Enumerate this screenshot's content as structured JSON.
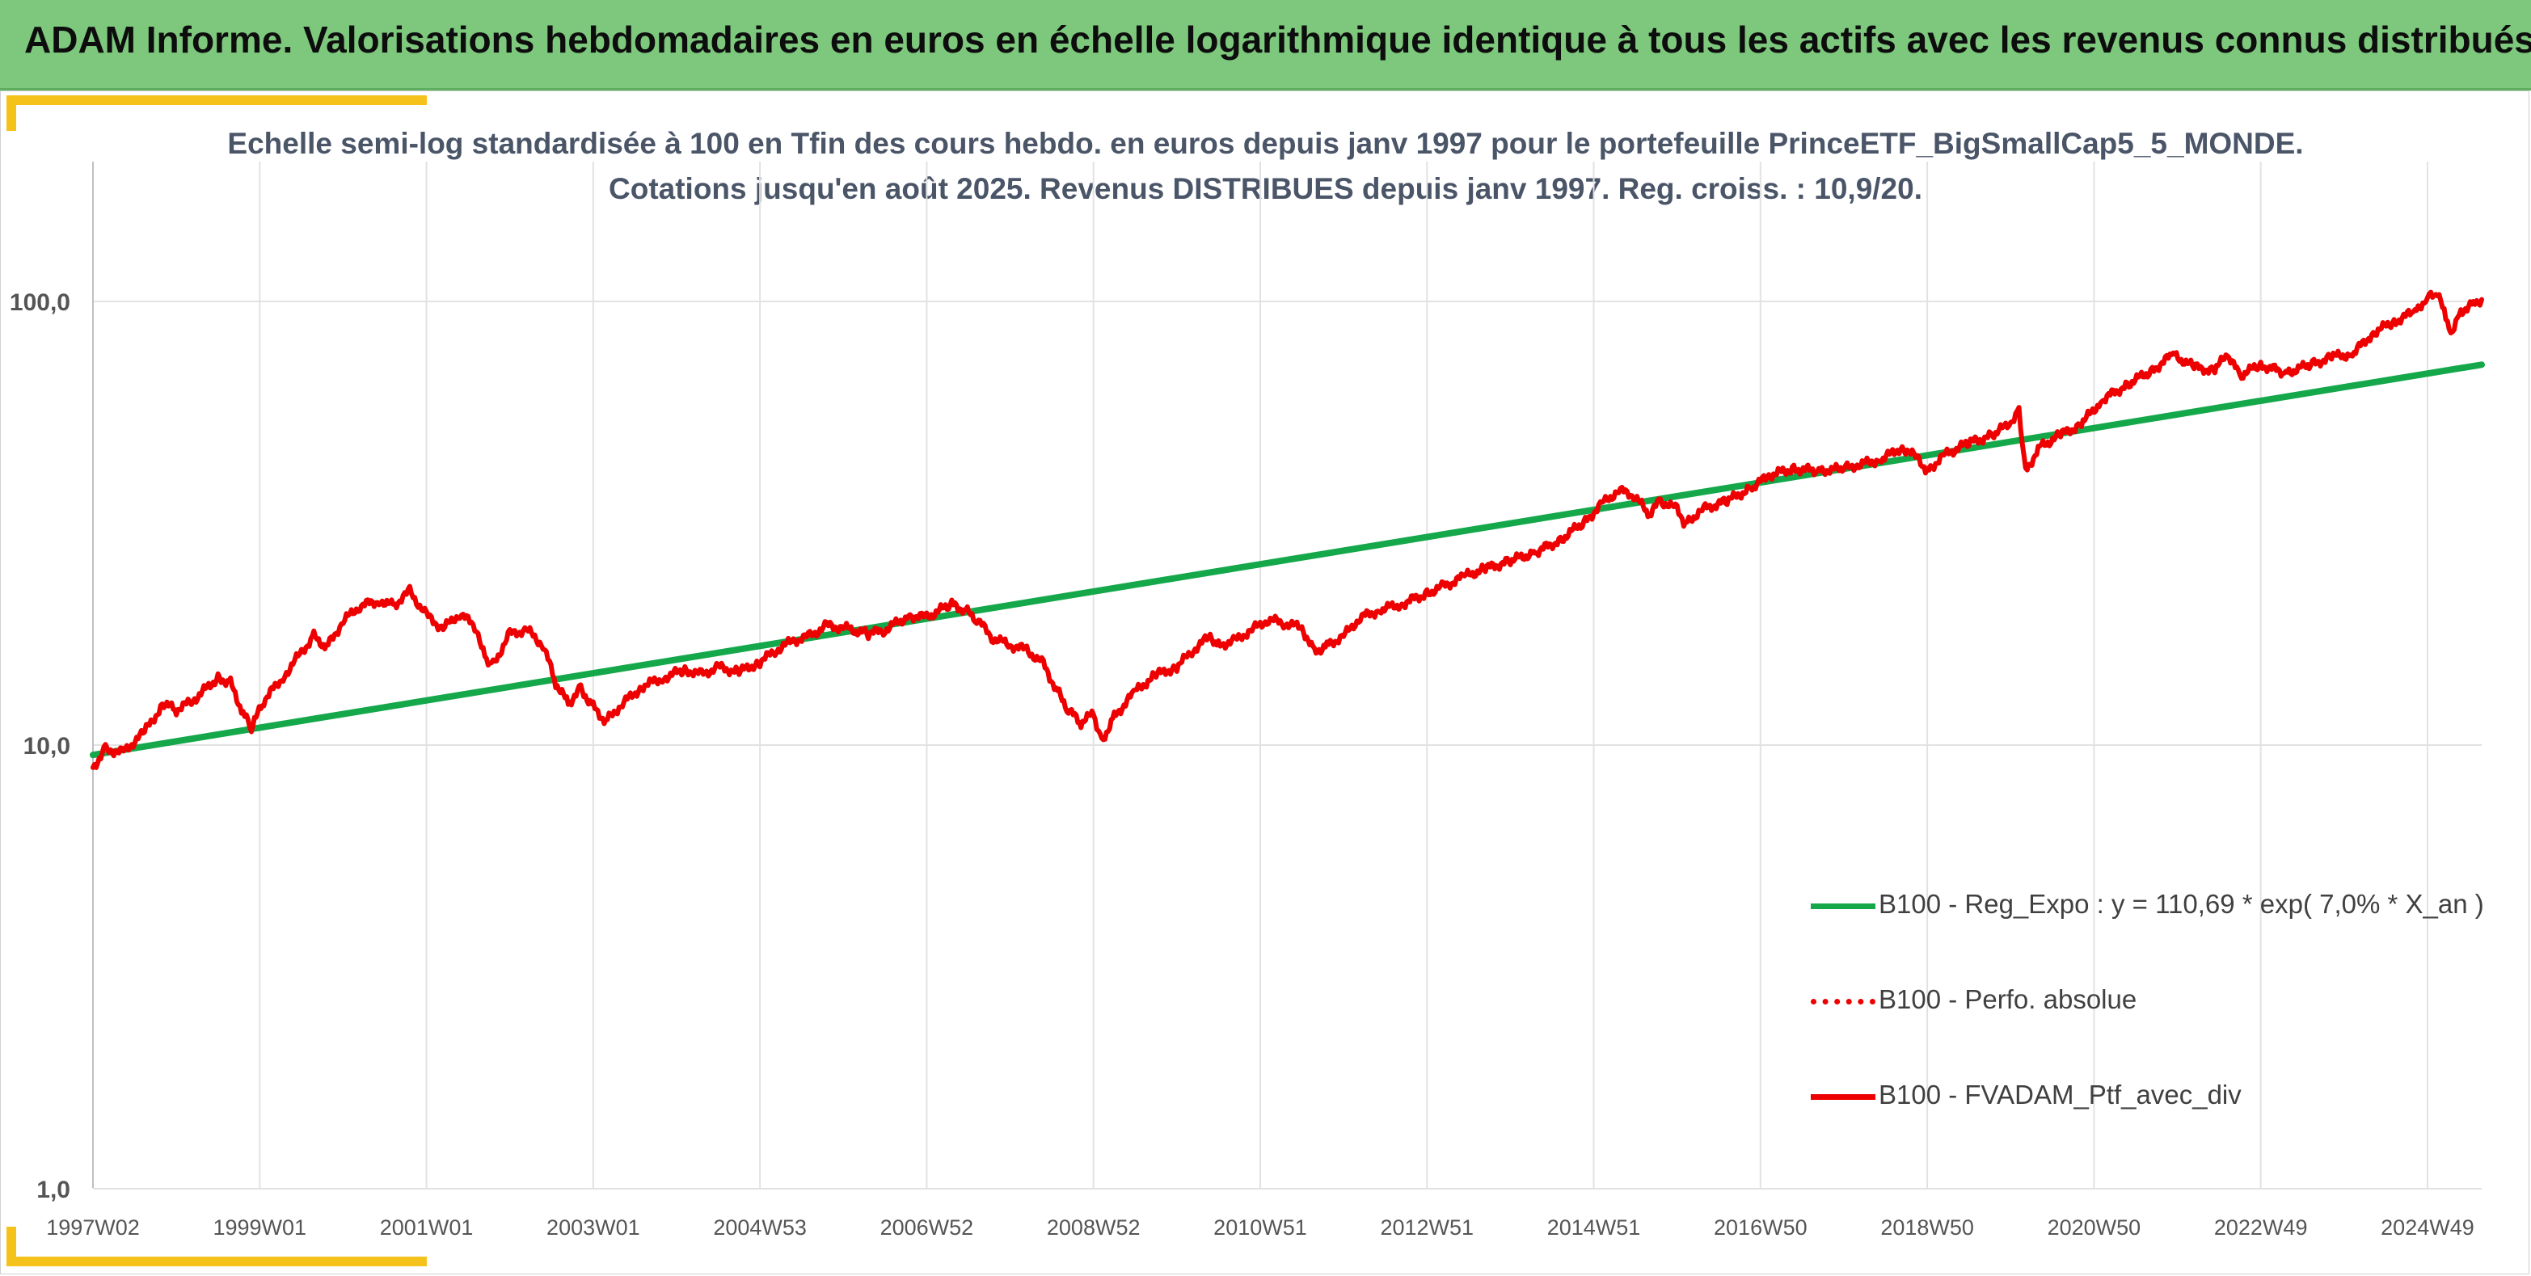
{
  "banner": {
    "title": "ADAM Informe. Valorisations hebdomadaires en euros en échelle logarithmique identique à tous les actifs avec les revenus connus distribués"
  },
  "colors": {
    "banner_bg": "#7dc87d",
    "accent": "#f5c21b",
    "regression": "#14a84b",
    "portfolio": "#ee0000",
    "grid": "#e2e2e2",
    "title_text": "#4a5568"
  },
  "chart_data": {
    "type": "line",
    "title_line1": "Echelle semi-log standardisée à 100 en Tfin des cours hebdo. en euros depuis janv 1997 pour le portefeuille PrinceETF_BigSmallCap5_5_MONDE.",
    "title_line2": "Cotations jusqu'en août 2025. Revenus DISTRIBUES depuis janv 1997. Reg. croiss. : 10,9/20.",
    "y_scale": "log",
    "ylim": [
      1,
      200
    ],
    "y_ticks": [
      {
        "value": 1,
        "label": "1,0"
      },
      {
        "value": 10,
        "label": "10,0"
      },
      {
        "value": 100,
        "label": "100,0"
      }
    ],
    "x_range": [
      1997.0,
      2025.65
    ],
    "x_ticks": [
      {
        "label": "1997W02",
        "year": 1997.0
      },
      {
        "label": "1999W01",
        "year": 1999.0
      },
      {
        "label": "2001W01",
        "year": 2001.0
      },
      {
        "label": "2003W01",
        "year": 2003.0
      },
      {
        "label": "2004W53",
        "year": 2005.0
      },
      {
        "label": "2006W52",
        "year": 2007.0
      },
      {
        "label": "2008W52",
        "year": 2009.0
      },
      {
        "label": "2010W51",
        "year": 2011.0
      },
      {
        "label": "2012W51",
        "year": 2013.0
      },
      {
        "label": "2014W51",
        "year": 2015.0
      },
      {
        "label": "2016W50",
        "year": 2017.0
      },
      {
        "label": "2018W50",
        "year": 2019.0
      },
      {
        "label": "2020W50",
        "year": 2021.0
      },
      {
        "label": "2022W49",
        "year": 2023.0
      },
      {
        "label": "2024W49",
        "year": 2025.0
      }
    ],
    "grid": "vertical and horizontal",
    "legend_position": "bottom-right",
    "series": [
      {
        "name": "B100 - Reg_Expo : y = 110,69 * exp( 7,0% *  X_an )",
        "style": "solid-thick",
        "color": "#14a84b",
        "points": [
          [
            1997.0,
            9.5
          ],
          [
            2025.65,
            72.0
          ]
        ]
      },
      {
        "name": "B100 - Perfo. absolue",
        "style": "dotted",
        "color": "#ee0000",
        "points": []
      },
      {
        "name": "B100 - FVADAM_Ptf_avec_div",
        "style": "solid",
        "color": "#ee0000",
        "points": [
          [
            1997.0,
            8.9
          ],
          [
            1997.15,
            9.8
          ],
          [
            1997.35,
            9.6
          ],
          [
            1997.6,
            10.6
          ],
          [
            1997.85,
            12.4
          ],
          [
            1998.0,
            12.0
          ],
          [
            1998.2,
            12.6
          ],
          [
            1998.5,
            14.2
          ],
          [
            1998.65,
            13.8
          ],
          [
            1998.8,
            11.8
          ],
          [
            1998.9,
            10.9
          ],
          [
            1999.05,
            12.6
          ],
          [
            1999.3,
            14.4
          ],
          [
            1999.5,
            16.2
          ],
          [
            1999.65,
            17.6
          ],
          [
            1999.8,
            16.6
          ],
          [
            2000.0,
            19.0
          ],
          [
            2000.2,
            20.6
          ],
          [
            2000.45,
            21.2
          ],
          [
            2000.6,
            20.6
          ],
          [
            2000.8,
            22.2
          ],
          [
            2001.0,
            19.6
          ],
          [
            2001.2,
            18.3
          ],
          [
            2001.4,
            19.8
          ],
          [
            2001.6,
            18.4
          ],
          [
            2001.7,
            15.8
          ],
          [
            2001.8,
            15.2
          ],
          [
            2002.0,
            17.8
          ],
          [
            2002.2,
            18.2
          ],
          [
            2002.4,
            16.8
          ],
          [
            2002.55,
            13.8
          ],
          [
            2002.7,
            12.4
          ],
          [
            2002.85,
            13.4
          ],
          [
            2003.0,
            12.2
          ],
          [
            2003.15,
            11.3
          ],
          [
            2003.35,
            12.4
          ],
          [
            2003.6,
            13.6
          ],
          [
            2003.85,
            14.2
          ],
          [
            2004.1,
            14.8
          ],
          [
            2004.3,
            14.4
          ],
          [
            2004.5,
            15.0
          ],
          [
            2004.75,
            14.6
          ],
          [
            2005.0,
            15.4
          ],
          [
            2005.2,
            16.4
          ],
          [
            2005.4,
            17.2
          ],
          [
            2005.6,
            17.6
          ],
          [
            2005.8,
            18.6
          ],
          [
            2006.0,
            18.4
          ],
          [
            2006.3,
            17.8
          ],
          [
            2006.5,
            18.2
          ],
          [
            2006.8,
            19.6
          ],
          [
            2007.0,
            19.4
          ],
          [
            2007.3,
            20.8
          ],
          [
            2007.45,
            20.2
          ],
          [
            2007.6,
            19.2
          ],
          [
            2007.8,
            17.4
          ],
          [
            2008.0,
            16.8
          ],
          [
            2008.2,
            16.4
          ],
          [
            2008.4,
            15.2
          ],
          [
            2008.55,
            13.4
          ],
          [
            2008.7,
            12.0
          ],
          [
            2008.85,
            11.2
          ],
          [
            2009.0,
            11.8
          ],
          [
            2009.1,
            10.2
          ],
          [
            2009.25,
            11.6
          ],
          [
            2009.5,
            13.2
          ],
          [
            2009.75,
            14.4
          ],
          [
            2010.0,
            15.0
          ],
          [
            2010.2,
            16.4
          ],
          [
            2010.4,
            17.6
          ],
          [
            2010.5,
            16.8
          ],
          [
            2010.7,
            17.2
          ],
          [
            2010.9,
            18.2
          ],
          [
            2011.1,
            19.2
          ],
          [
            2011.3,
            18.8
          ],
          [
            2011.5,
            18.4
          ],
          [
            2011.65,
            16.2
          ],
          [
            2011.8,
            16.8
          ],
          [
            2012.0,
            17.6
          ],
          [
            2012.2,
            19.4
          ],
          [
            2012.45,
            20.2
          ],
          [
            2012.7,
            20.8
          ],
          [
            2013.0,
            22.0
          ],
          [
            2013.2,
            22.8
          ],
          [
            2013.45,
            24.0
          ],
          [
            2013.7,
            25.0
          ],
          [
            2014.0,
            26.0
          ],
          [
            2014.3,
            27.2
          ],
          [
            2014.6,
            29.0
          ],
          [
            2014.9,
            32.0
          ],
          [
            2015.1,
            35.0
          ],
          [
            2015.3,
            37.5
          ],
          [
            2015.5,
            36.5
          ],
          [
            2015.65,
            33.0
          ],
          [
            2015.8,
            35.5
          ],
          [
            2016.0,
            34.0
          ],
          [
            2016.1,
            31.5
          ],
          [
            2016.3,
            34.0
          ],
          [
            2016.6,
            35.5
          ],
          [
            2016.9,
            38.0
          ],
          [
            2017.1,
            40.5
          ],
          [
            2017.4,
            42.0
          ],
          [
            2017.7,
            41.5
          ],
          [
            2018.0,
            42.0
          ],
          [
            2018.2,
            43.0
          ],
          [
            2018.45,
            44.0
          ],
          [
            2018.7,
            47.0
          ],
          [
            2018.9,
            44.0
          ],
          [
            2019.0,
            41.5
          ],
          [
            2019.2,
            45.0
          ],
          [
            2019.5,
            48.0
          ],
          [
            2019.8,
            50.0
          ],
          [
            2020.0,
            53.5
          ],
          [
            2020.1,
            57.0
          ],
          [
            2020.18,
            41.5
          ],
          [
            2020.35,
            47.0
          ],
          [
            2020.6,
            50.0
          ],
          [
            2020.85,
            53.0
          ],
          [
            2021.1,
            60.0
          ],
          [
            2021.4,
            65.0
          ],
          [
            2021.7,
            70.0
          ],
          [
            2021.95,
            76.0
          ],
          [
            2022.2,
            71.0
          ],
          [
            2022.45,
            70.0
          ],
          [
            2022.6,
            76.0
          ],
          [
            2022.75,
            68.0
          ],
          [
            2023.0,
            72.0
          ],
          [
            2023.3,
            69.0
          ],
          [
            2023.6,
            72.0
          ],
          [
            2023.85,
            75.0
          ],
          [
            2024.1,
            76.0
          ],
          [
            2024.35,
            85.0
          ],
          [
            2024.6,
            90.0
          ],
          [
            2024.85,
            95.0
          ],
          [
            2025.0,
            102.0
          ],
          [
            2025.12,
            104.0
          ],
          [
            2025.22,
            92.0
          ],
          [
            2025.28,
            85.0
          ],
          [
            2025.4,
            95.0
          ],
          [
            2025.55,
            99.0
          ],
          [
            2025.65,
            101.0
          ]
        ]
      }
    ]
  }
}
